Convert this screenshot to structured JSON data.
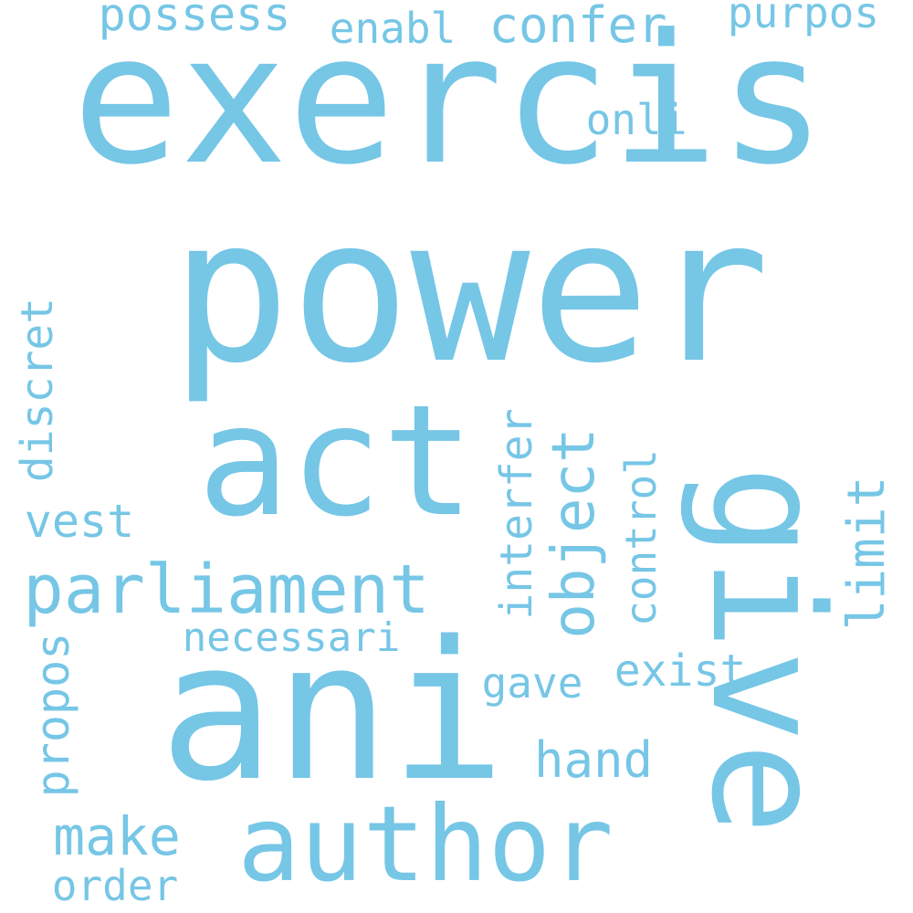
{
  "color": "#76c6e6",
  "background": "#ffffff",
  "words": [
    {
      "text": "exercis"
    },
    {
      "text": "power"
    },
    {
      "text": "act"
    },
    {
      "text": "ani"
    },
    {
      "text": "give"
    },
    {
      "text": "author"
    },
    {
      "text": "parliament"
    },
    {
      "text": "possess"
    },
    {
      "text": "enabl"
    },
    {
      "text": "confer"
    },
    {
      "text": "purpos"
    },
    {
      "text": "onli"
    },
    {
      "text": "discret"
    },
    {
      "text": "vest"
    },
    {
      "text": "necessari"
    },
    {
      "text": "object"
    },
    {
      "text": "interfer"
    },
    {
      "text": "control"
    },
    {
      "text": "limit"
    },
    {
      "text": "exist"
    },
    {
      "text": "gave"
    },
    {
      "text": "hand"
    },
    {
      "text": "propos"
    },
    {
      "text": "make"
    },
    {
      "text": "order"
    }
  ]
}
